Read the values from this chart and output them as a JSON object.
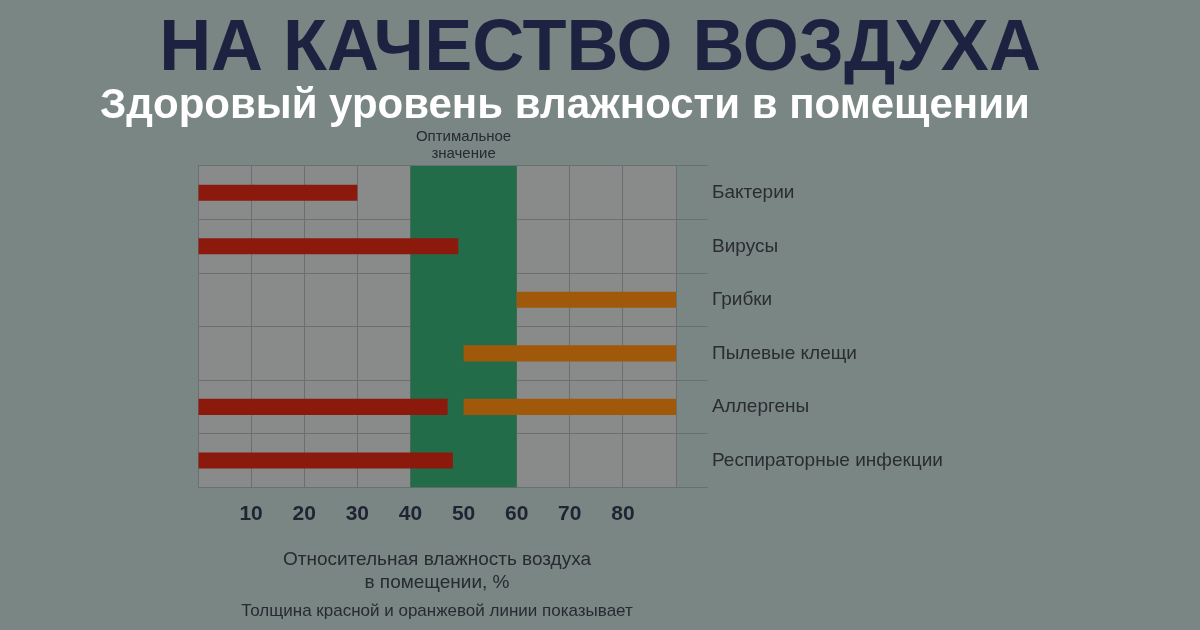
{
  "chart_data": {
    "type": "bar",
    "orientation": "horizontal",
    "title": "НА КАЧЕСТВО ВОЗДУХА",
    "subtitle": "Здоровый уровень влажности в помещении",
    "xlabel": "Относительная влажность воздуха\nв помещении, %",
    "annotations": [
      "Толщина красной и оранжевой линии показывает"
    ],
    "categories": [
      "Бактерии",
      "Вирусы",
      "Грибки",
      "Пылевые клещи",
      "Аллергены",
      "Респираторные инфекции"
    ],
    "series": [
      {
        "color": "#8b1a0c",
        "base": [
          0,
          0,
          null,
          null,
          0,
          0
        ],
        "values": [
          30,
          49,
          null,
          null,
          47,
          48
        ]
      },
      {
        "color": "#a0580a",
        "base": [
          null,
          null,
          60,
          50,
          50,
          null
        ],
        "values": [
          null,
          null,
          30,
          40,
          40,
          null
        ]
      }
    ],
    "xlim": [
      0,
      90
    ],
    "xticks": [
      {
        "value": 0,
        "label": null
      },
      10,
      20,
      30,
      40,
      50,
      60,
      70,
      80,
      {
        "value": 90,
        "label": null
      }
    ],
    "bands": [
      {
        "axis": "x",
        "from": 40,
        "to": 60,
        "label": "Оптимальное значение",
        "color": "#226c49"
      }
    ],
    "grid": true,
    "legend": false
  }
}
